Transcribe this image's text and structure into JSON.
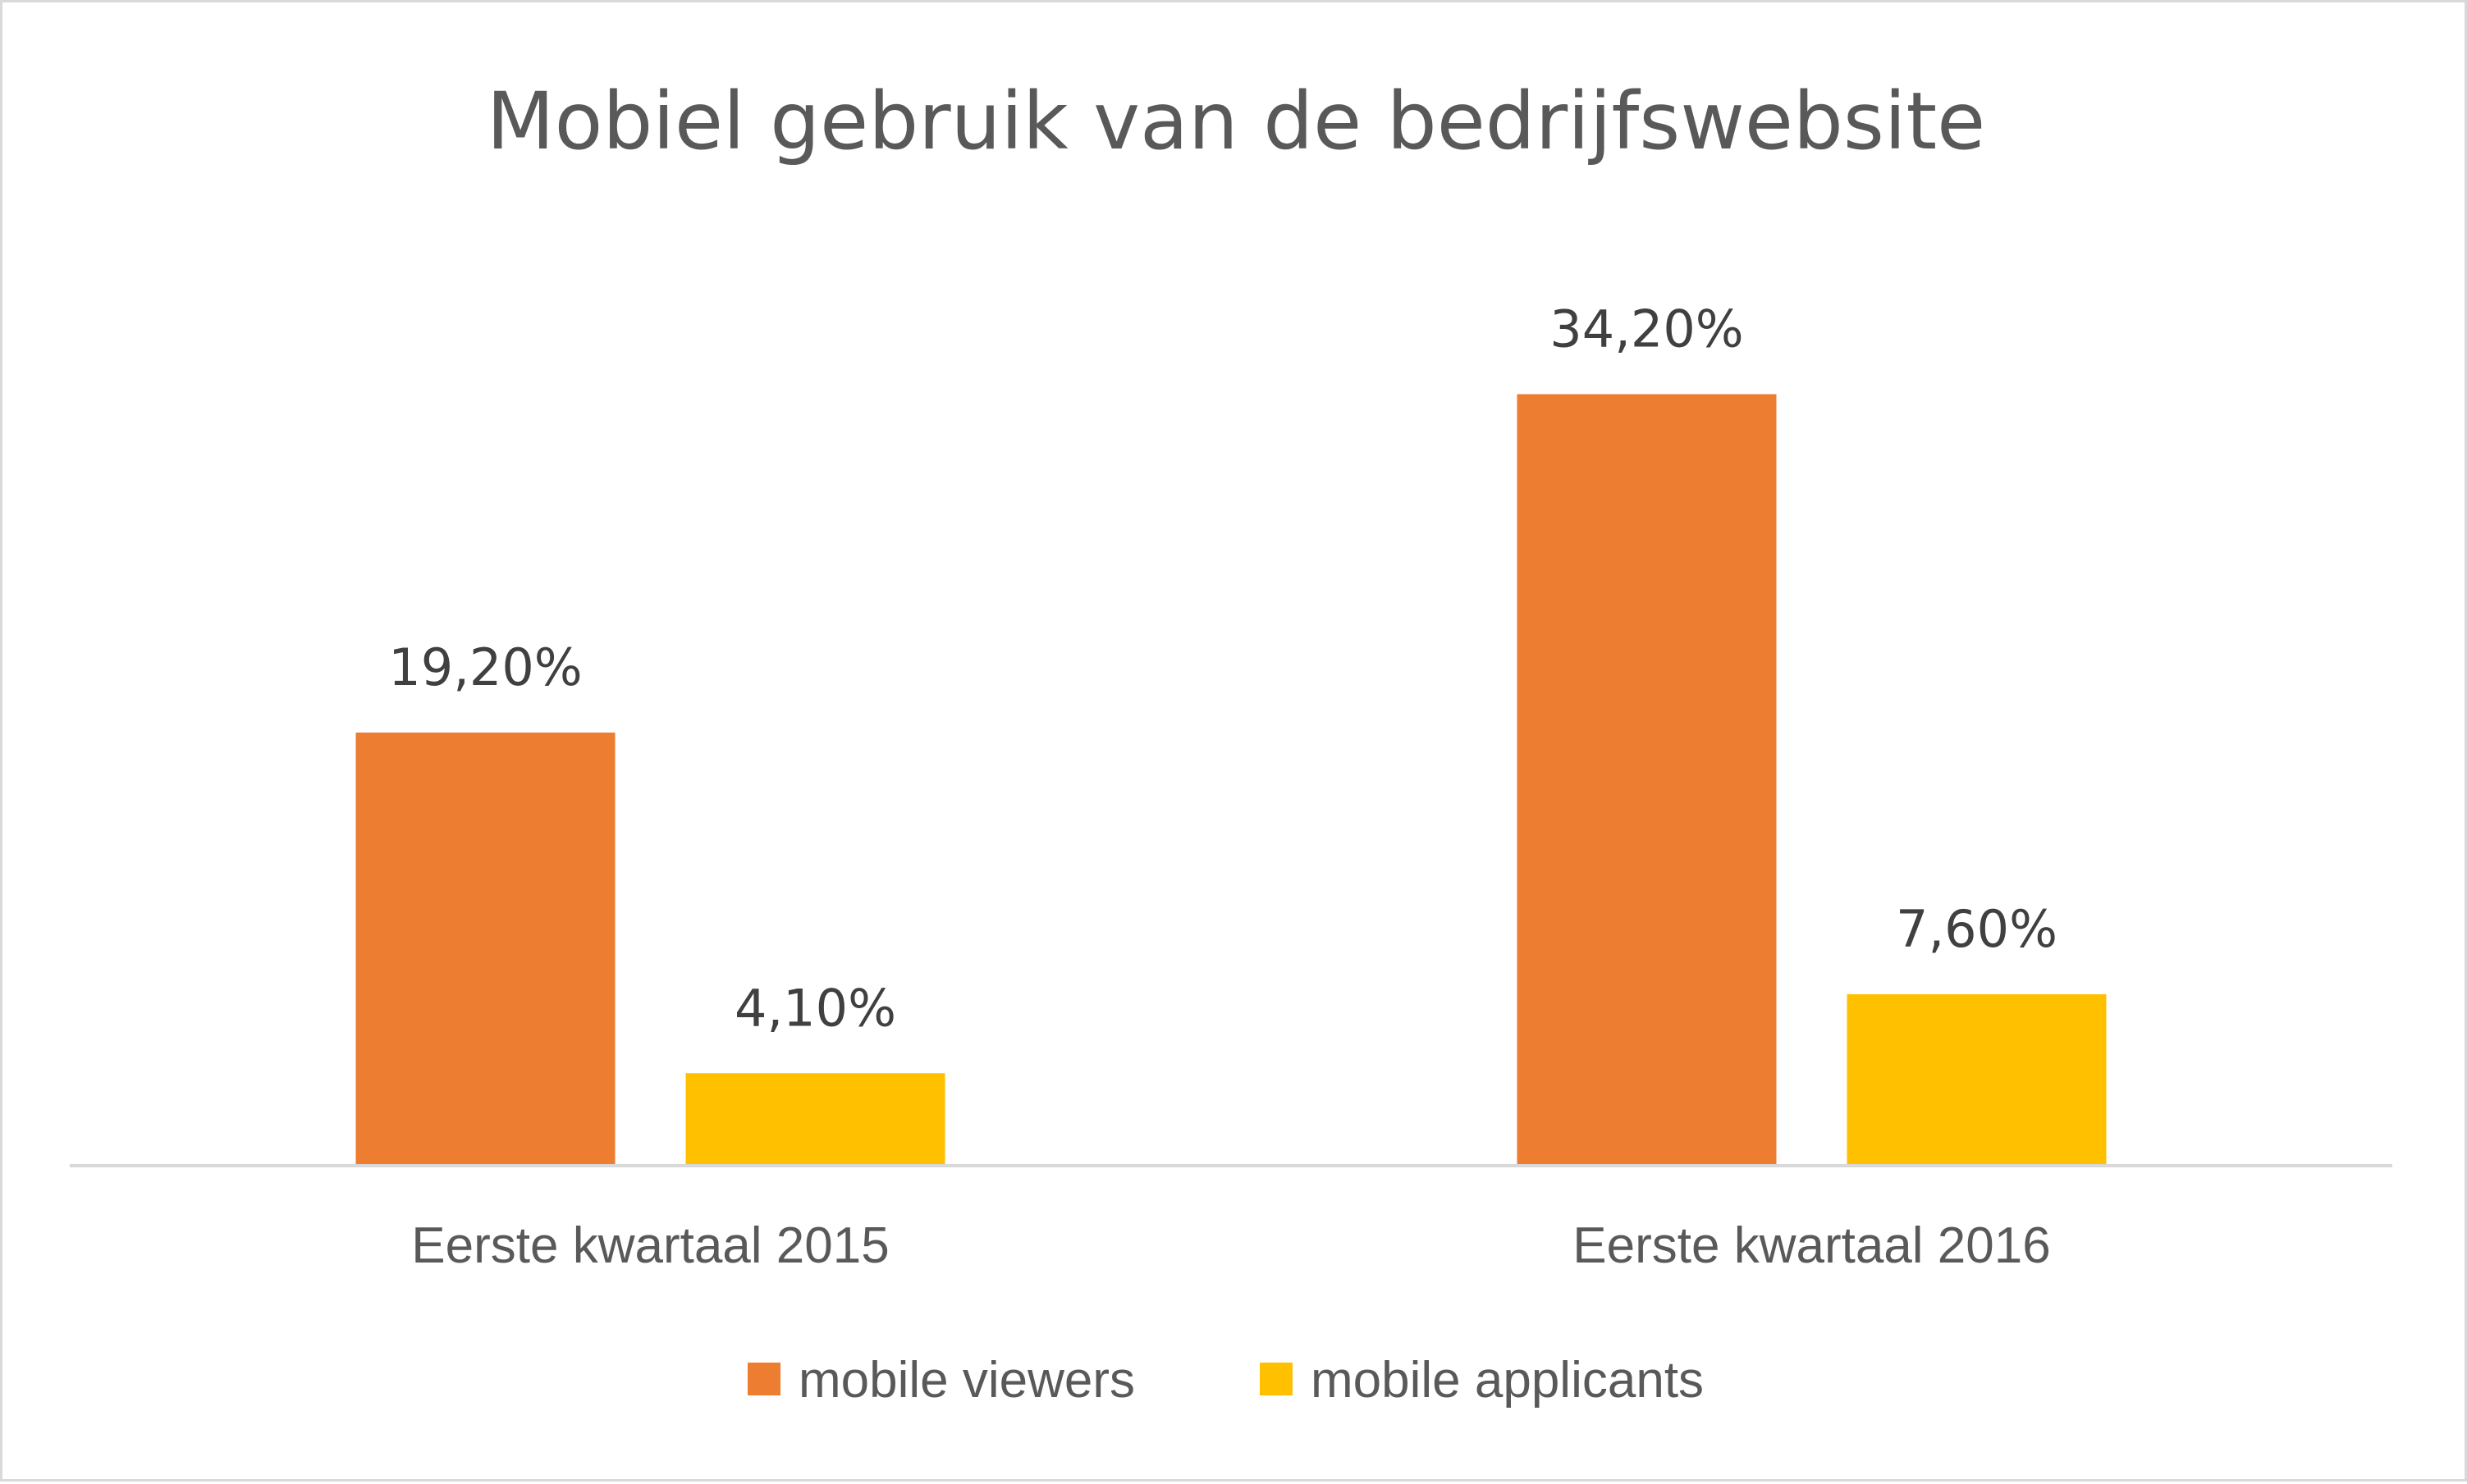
{
  "chart_data": {
    "type": "bar",
    "title": "Mobiel gebruik van de bedrijfswebsite",
    "categories": [
      "Eerste kwartaal 2015",
      "Eerste kwartaal 2016"
    ],
    "series": [
      {
        "name": "mobile viewers",
        "color": "#ED7D31",
        "values": [
          19.2,
          34.2
        ],
        "labels": [
          "19,20%",
          "34,20%"
        ]
      },
      {
        "name": "mobile applicants",
        "color": "#FFC000",
        "values": [
          4.1,
          7.6
        ],
        "labels": [
          "4,10%",
          "7,60%"
        ]
      }
    ],
    "xlabel": "",
    "ylabel": "",
    "ylim": [
      0,
      40
    ],
    "grid": false,
    "legend_position": "bottom"
  }
}
